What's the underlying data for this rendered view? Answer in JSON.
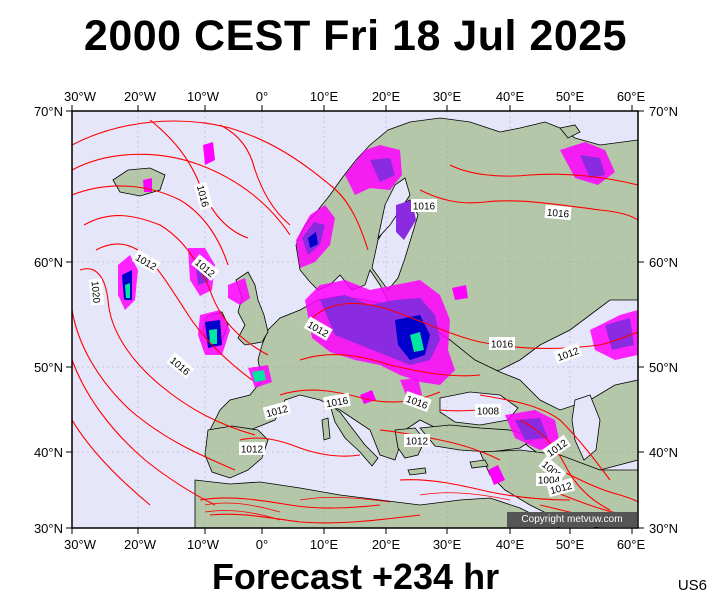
{
  "title": "2000 CEST Fri 18 Jul 2025",
  "footer": "Forecast +234 hr",
  "model_code": "US6",
  "copyright": "Copyright metvuw.com",
  "lon_ticks": [
    "30°W",
    "20°W",
    "10°W",
    "0°",
    "10°E",
    "20°E",
    "30°E",
    "40°E",
    "50°E",
    "60°E"
  ],
  "lat_ticks": [
    "70°N",
    "60°N",
    "50°N",
    "40°N",
    "30°N"
  ],
  "isobar_labels": [
    "1016",
    "1016",
    "1016",
    "1012",
    "1012",
    "1020",
    "1016",
    "1012",
    "1012",
    "1016",
    "1016",
    "1012",
    "1012",
    "1008",
    "1008",
    "1012",
    "1012",
    "1004",
    "1012",
    "1016"
  ],
  "colors": {
    "ocean": "#e6e6fa",
    "land": "#b5c7a9",
    "isobar": "#ff0000",
    "rain_light": "#ff00ff",
    "rain_mid": "#8a2be2",
    "rain_heavy": "#0000cd",
    "rain_extreme": "#00e5a0"
  }
}
